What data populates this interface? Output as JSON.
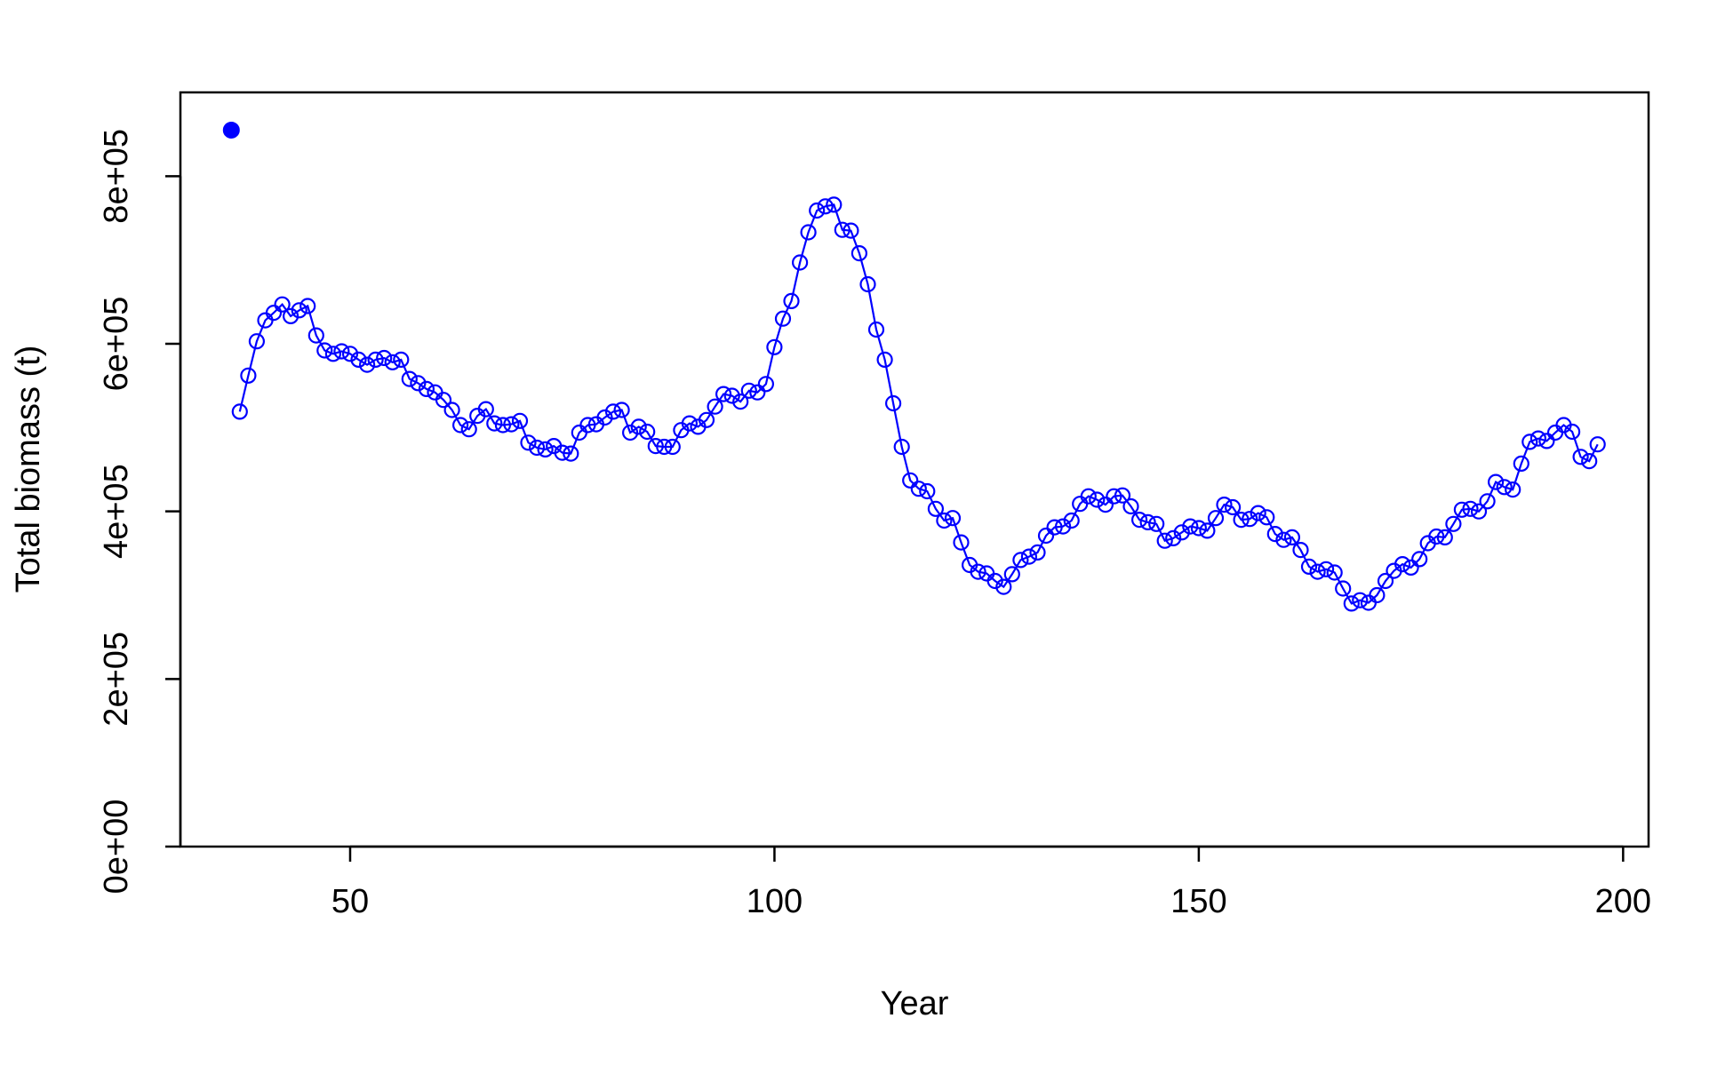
{
  "chart_data": {
    "type": "line",
    "xlabel": "Year",
    "ylabel": "Total biomass (t)",
    "xlim": [
      30,
      203
    ],
    "ylim": [
      0,
      900000
    ],
    "x_ticks": [
      50,
      100,
      150,
      200
    ],
    "x_tick_labels": [
      "50",
      "100",
      "150",
      "200"
    ],
    "y_ticks": [
      0,
      200000,
      400000,
      600000,
      800000
    ],
    "y_tick_labels": [
      "0e+00",
      "2e+05",
      "4e+05",
      "6e+05",
      "8e+05"
    ],
    "grid": false,
    "color": "#0000ff",
    "initial_point": {
      "x": 36,
      "y": 855000
    },
    "x_start": 37,
    "values": [
      519000,
      562000,
      603000,
      628000,
      637000,
      647000,
      633000,
      640000,
      645000,
      610000,
      592000,
      588000,
      591000,
      588000,
      581000,
      575000,
      581000,
      583000,
      578000,
      581000,
      558000,
      553000,
      546000,
      542000,
      533000,
      521000,
      503000,
      498000,
      514000,
      522000,
      505000,
      503000,
      504000,
      508000,
      482000,
      476000,
      474000,
      478000,
      470000,
      469000,
      494000,
      503000,
      504000,
      512000,
      519000,
      521000,
      494000,
      501000,
      495000,
      478000,
      477000,
      477000,
      497000,
      505000,
      501000,
      509000,
      525000,
      540000,
      538000,
      531000,
      544000,
      542000,
      552000,
      596000,
      630000,
      651000,
      697000,
      733000,
      759000,
      764000,
      766000,
      736000,
      735000,
      708000,
      671000,
      617000,
      581000,
      529000,
      477000,
      437000,
      427000,
      424000,
      403000,
      389000,
      392000,
      363000,
      336000,
      328000,
      326000,
      317000,
      310000,
      325000,
      342000,
      346000,
      351000,
      371000,
      381000,
      382000,
      389000,
      409000,
      418000,
      414000,
      408000,
      418000,
      419000,
      406000,
      390000,
      387000,
      385000,
      365000,
      368000,
      375000,
      382000,
      380000,
      377000,
      392000,
      408000,
      405000,
      390000,
      391000,
      398000,
      393000,
      373000,
      366000,
      369000,
      354000,
      334000,
      328000,
      331000,
      327000,
      308000,
      290000,
      294000,
      291000,
      300000,
      317000,
      329000,
      337000,
      333000,
      343000,
      362000,
      370000,
      369000,
      385000,
      402000,
      403000,
      400000,
      412000,
      435000,
      429000,
      426000,
      457000,
      483000,
      487000,
      484000,
      494000,
      503000,
      495000,
      465000,
      460000,
      480000
    ]
  }
}
